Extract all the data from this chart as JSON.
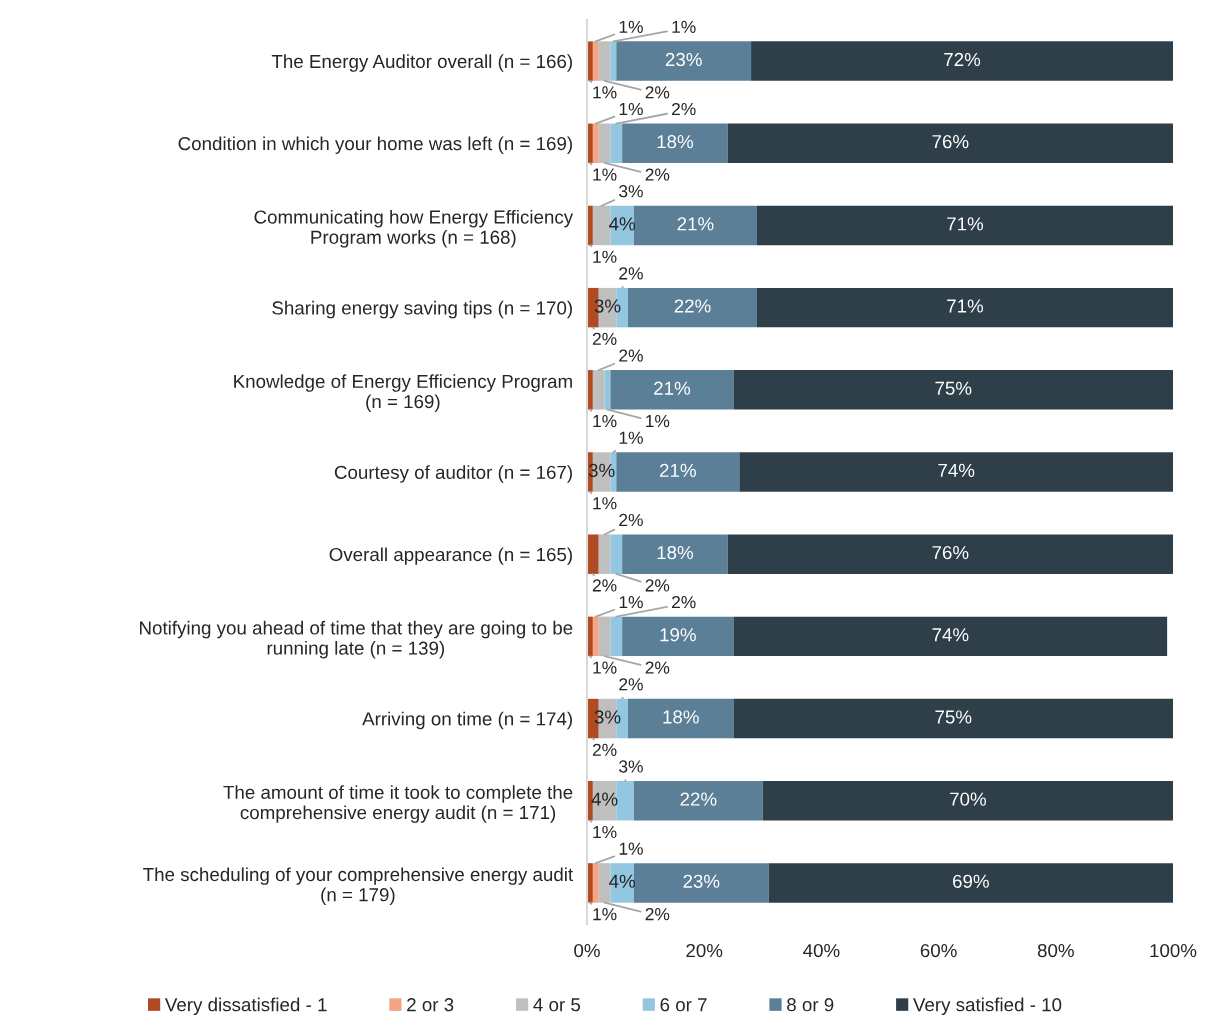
{
  "chart_data": {
    "type": "bar",
    "orientation": "horizontal",
    "stacked": true,
    "categories": [
      "The Energy Auditor overall (n = 166)",
      "Condition in which your home was left (n = 169)",
      "Communicating how Energy Efficiency\nProgram works (n = 168)",
      "Sharing energy saving tips (n = 170)",
      "Knowledge of Energy Efficiency Program\n(n = 169)",
      "Courtesy of auditor (n = 167)",
      "Overall appearance (n = 165)",
      "Notifying you ahead of time that they are going to be\nrunning late (n = 139)",
      "Arriving on time (n = 174)",
      "The amount of time it took to complete the\ncomprehensive energy audit (n = 171)",
      "The scheduling of your comprehensive energy audit\n(n = 179)"
    ],
    "series": [
      {
        "name": "Very dissatisfied - 1",
        "color": "#b04a22",
        "values": [
          1,
          1,
          1,
          2,
          1,
          1,
          2,
          1,
          2,
          1,
          1
        ],
        "value_labels": [
          "1%",
          "1%",
          "1%",
          "2%",
          "1%",
          "1%",
          "2%",
          "1%",
          "2%",
          "1%",
          "1%"
        ]
      },
      {
        "name": "2 or 3",
        "color": "#f4a582",
        "values": [
          1,
          1,
          null,
          null,
          null,
          null,
          null,
          1,
          null,
          null,
          1
        ],
        "value_labels": [
          "1%",
          "1%",
          null,
          null,
          null,
          null,
          null,
          "1%",
          null,
          null,
          "1%"
        ]
      },
      {
        "name": "4 or 5",
        "color": "#bfbfbf",
        "values": [
          2,
          2,
          3,
          3,
          2,
          3,
          2,
          2,
          3,
          4,
          2
        ],
        "value_labels": [
          "2%",
          "2%",
          "3%",
          "3%",
          "2%",
          "3%",
          "2%",
          "2%",
          "3%",
          "4%",
          "2%"
        ]
      },
      {
        "name": "6 or 7",
        "color": "#92c6e1",
        "values": [
          1,
          2,
          4,
          2,
          1,
          1,
          2,
          2,
          2,
          3,
          4
        ],
        "value_labels": [
          "1%",
          "2%",
          "4%",
          "2%",
          "1%",
          "1%",
          "2%",
          "2%",
          "2%",
          "3%",
          "4%"
        ]
      },
      {
        "name": "8 or 9",
        "color": "#5b7f96",
        "values": [
          23,
          18,
          21,
          22,
          21,
          21,
          18,
          19,
          18,
          22,
          23
        ],
        "value_labels": [
          "23%",
          "18%",
          "21%",
          "22%",
          "21%",
          "21%",
          "18%",
          "19%",
          "18%",
          "22%",
          "23%"
        ]
      },
      {
        "name": "Very satisfied - 10",
        "color": "#2f3f4a",
        "values": [
          72,
          76,
          71,
          71,
          75,
          74,
          76,
          74,
          75,
          70,
          69
        ],
        "value_labels": [
          "72%",
          "76%",
          "71%",
          "71%",
          "75%",
          "74%",
          "76%",
          "74%",
          "75%",
          "70%",
          "69%"
        ]
      }
    ],
    "xlim": [
      0,
      100
    ],
    "xticks": [
      {
        "value": 0,
        "label": "0%"
      },
      {
        "value": 20,
        "label": "20%"
      },
      {
        "value": 40,
        "label": "40%"
      },
      {
        "value": 60,
        "label": "60%"
      },
      {
        "value": 80,
        "label": "80%"
      },
      {
        "value": 100,
        "label": "100%"
      }
    ],
    "legend": "bottom"
  }
}
